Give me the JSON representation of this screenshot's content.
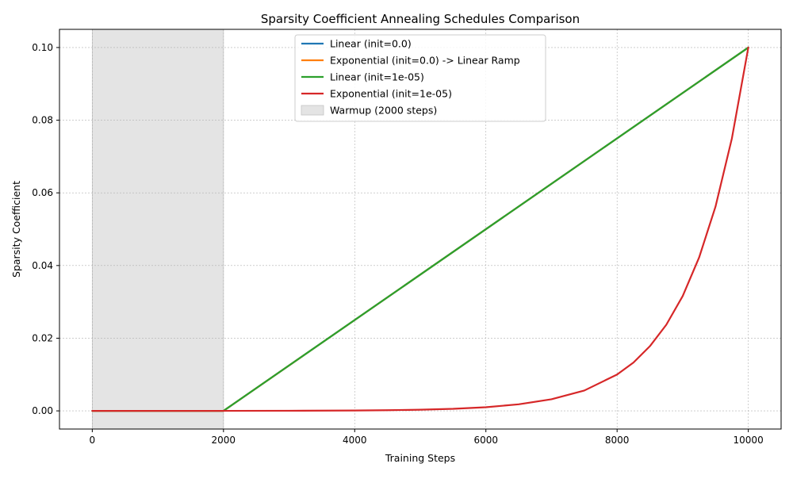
{
  "chart_data": {
    "type": "line",
    "title": "Sparsity Coefficient Annealing Schedules Comparison",
    "xlabel": "Training Steps",
    "ylabel": "Sparsity Coefficient",
    "xlim": [
      -500,
      10500
    ],
    "ylim": [
      -0.005,
      0.105
    ],
    "xticks": [
      0,
      2000,
      4000,
      6000,
      8000,
      10000
    ],
    "xtick_labels": [
      "0",
      "2000",
      "4000",
      "6000",
      "8000",
      "10000"
    ],
    "yticks": [
      0.0,
      0.02,
      0.04,
      0.06,
      0.08,
      0.1
    ],
    "ytick_labels": [
      "0.00",
      "0.02",
      "0.04",
      "0.06",
      "0.08",
      "0.10"
    ],
    "grid": true,
    "legend_position": "upper-center",
    "warmup_region": {
      "label": "Warmup (2000 steps)",
      "x_start": 0,
      "x_end": 2000,
      "color": "#e4e4e4"
    },
    "series": [
      {
        "name": "Linear (init=0.0)",
        "color": "#1f77b4",
        "x": [
          0,
          2000,
          10000
        ],
        "y": [
          0.0,
          0.0,
          0.1
        ]
      },
      {
        "name": "Exponential (init=0.0) -> Linear Ramp",
        "color": "#ff7f0e",
        "x": [
          0,
          2000,
          10000
        ],
        "y": [
          0.0,
          0.0,
          0.1
        ]
      },
      {
        "name": "Linear (init=1e-05)",
        "color": "#2ca02c",
        "x": [
          0,
          2000,
          10000
        ],
        "y": [
          1e-05,
          1e-05,
          0.1
        ]
      },
      {
        "name": "Exponential (init=1e-05)",
        "color": "#d62728",
        "x": [
          0,
          2000,
          3000,
          4000,
          4500,
          5000,
          5500,
          6000,
          6500,
          7000,
          7500,
          8000,
          8250,
          8500,
          8750,
          9000,
          9250,
          9500,
          9750,
          10000
        ],
        "y": [
          1e-05,
          1e-05,
          3e-05,
          0.0001,
          0.00018,
          0.00032,
          0.00056,
          0.001,
          0.0018,
          0.0032,
          0.0056,
          0.01,
          0.0133,
          0.0178,
          0.0237,
          0.0316,
          0.0422,
          0.0562,
          0.075,
          0.1
        ]
      }
    ]
  }
}
